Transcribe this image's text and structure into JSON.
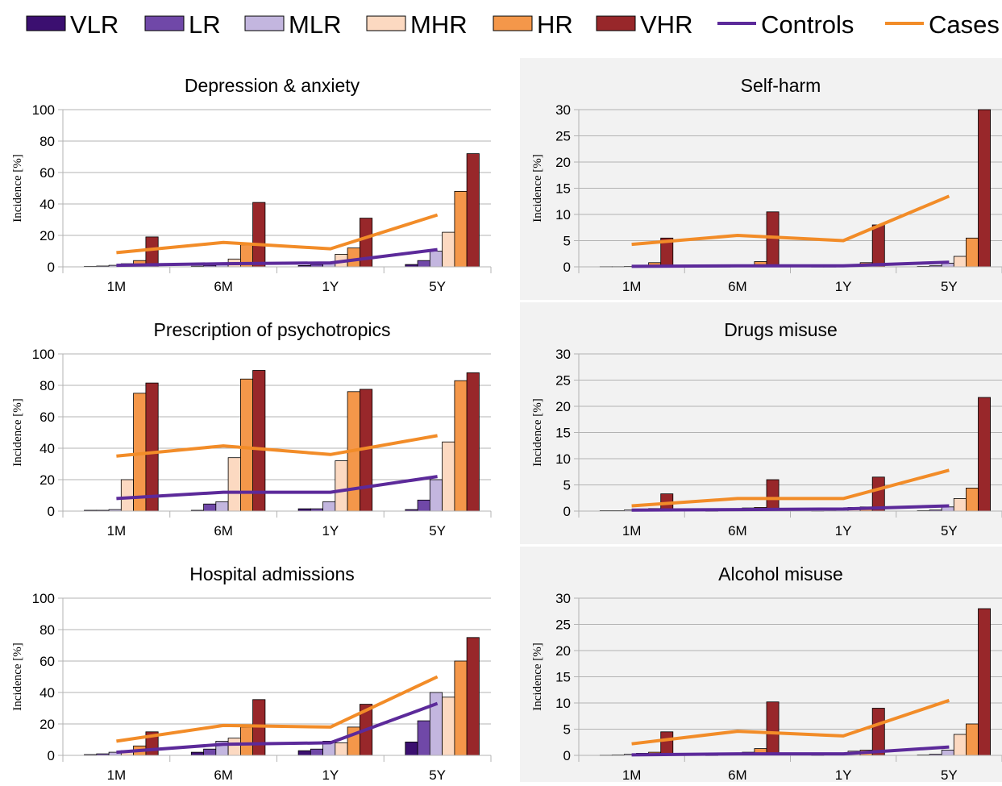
{
  "legend": {
    "bars": [
      {
        "label": "VLR",
        "color": "#3b0f70"
      },
      {
        "label": "LR",
        "color": "#7048a8"
      },
      {
        "label": "MLR",
        "color": "#c3b6df"
      },
      {
        "label": "MHR",
        "color": "#fcd9c1"
      },
      {
        "label": "HR",
        "color": "#f4974a"
      },
      {
        "label": "VHR",
        "color": "#98272a"
      }
    ],
    "lines": [
      {
        "label": "Controls",
        "color": "#5c2a9a"
      },
      {
        "label": "Cases",
        "color": "#f28c28"
      }
    ]
  },
  "chart_data": [
    {
      "type": "bar",
      "title": "Depression & anxiety",
      "ylabel": "Incidence [%]",
      "ylim": [
        0,
        100
      ],
      "yticks": [
        0,
        20,
        40,
        60,
        80,
        100
      ],
      "categories": [
        "1M",
        "6M",
        "1Y",
        "5Y"
      ],
      "series": [
        {
          "name": "VLR",
          "values": [
            0.3,
            0.4,
            0.8,
            1.5
          ]
        },
        {
          "name": "LR",
          "values": [
            0.5,
            0.8,
            1.5,
            4
          ]
        },
        {
          "name": "MLR",
          "values": [
            1,
            2,
            3,
            10
          ]
        },
        {
          "name": "MHR",
          "values": [
            2,
            5,
            8,
            22
          ]
        },
        {
          "name": "HR",
          "values": [
            4,
            14,
            12,
            48
          ]
        },
        {
          "name": "VHR",
          "values": [
            19,
            41,
            31,
            72
          ]
        }
      ],
      "lines": [
        {
          "name": "Controls",
          "values": [
            1,
            2,
            2.5,
            11
          ]
        },
        {
          "name": "Cases",
          "values": [
            9,
            15.5,
            11.5,
            33
          ]
        }
      ]
    },
    {
      "type": "bar",
      "title": "Self-harm",
      "ylabel": "Incidence [%]",
      "ylim": [
        0,
        30
      ],
      "yticks": [
        0,
        5,
        10,
        15,
        20,
        25,
        30
      ],
      "categories": [
        "1M",
        "6M",
        "1Y",
        "5Y"
      ],
      "series": [
        {
          "name": "VLR",
          "values": [
            0.05,
            0.05,
            0.05,
            0.1
          ]
        },
        {
          "name": "LR",
          "values": [
            0.05,
            0.05,
            0.05,
            0.2
          ]
        },
        {
          "name": "MLR",
          "values": [
            0.1,
            0.1,
            0.1,
            0.7
          ]
        },
        {
          "name": "MHR",
          "values": [
            0.2,
            0.3,
            0.4,
            2
          ]
        },
        {
          "name": "HR",
          "values": [
            0.8,
            1,
            0.8,
            5.5
          ]
        },
        {
          "name": "VHR",
          "values": [
            5.5,
            10.5,
            8,
            30
          ]
        }
      ],
      "lines": [
        {
          "name": "Controls",
          "values": [
            0.1,
            0.2,
            0.2,
            0.9
          ]
        },
        {
          "name": "Cases",
          "values": [
            4.3,
            6,
            5,
            13.5
          ]
        }
      ]
    },
    {
      "type": "bar",
      "title": "Prescription of psychotropics",
      "ylabel": "Incidence [%]",
      "ylim": [
        0,
        100
      ],
      "yticks": [
        0,
        20,
        40,
        60,
        80,
        100
      ],
      "categories": [
        "1M",
        "6M",
        "1Y",
        "5Y"
      ],
      "series": [
        {
          "name": "VLR",
          "values": [
            0.5,
            0.5,
            1.5,
            1
          ]
        },
        {
          "name": "LR",
          "values": [
            0.5,
            4.5,
            1.5,
            7
          ]
        },
        {
          "name": "MLR",
          "values": [
            1,
            6,
            6,
            20
          ]
        },
        {
          "name": "MHR",
          "values": [
            20,
            34,
            32,
            44
          ]
        },
        {
          "name": "HR",
          "values": [
            75,
            84,
            76,
            83
          ]
        },
        {
          "name": "VHR",
          "values": [
            81.5,
            89.5,
            77.5,
            88
          ]
        }
      ],
      "lines": [
        {
          "name": "Controls",
          "values": [
            8,
            12,
            12,
            22
          ]
        },
        {
          "name": "Cases",
          "values": [
            35,
            41.5,
            36,
            48
          ]
        }
      ]
    },
    {
      "type": "bar",
      "title": "Drugs misuse",
      "ylabel": "Incidence [%]",
      "ylim": [
        0,
        30
      ],
      "yticks": [
        0,
        5,
        10,
        15,
        20,
        25,
        30
      ],
      "categories": [
        "1M",
        "6M",
        "1Y",
        "5Y"
      ],
      "series": [
        {
          "name": "VLR",
          "values": [
            0.1,
            0.05,
            0.05,
            0.1
          ]
        },
        {
          "name": "LR",
          "values": [
            0.1,
            0.1,
            0.1,
            0.2
          ]
        },
        {
          "name": "MLR",
          "values": [
            0.2,
            0.2,
            0.3,
            0.8
          ]
        },
        {
          "name": "MHR",
          "values": [
            0.4,
            0.6,
            0.7,
            2.4
          ]
        },
        {
          "name": "HR",
          "values": [
            0.5,
            0.7,
            0.8,
            4.4
          ]
        },
        {
          "name": "VHR",
          "values": [
            3.3,
            6,
            6.5,
            21.7
          ]
        }
      ],
      "lines": [
        {
          "name": "Controls",
          "values": [
            0.2,
            0.3,
            0.4,
            1
          ]
        },
        {
          "name": "Cases",
          "values": [
            1,
            2.4,
            2.4,
            7.8
          ]
        }
      ]
    },
    {
      "type": "bar",
      "title": "Hospital admissions",
      "ylabel": "Incidence [%]",
      "ylim": [
        0,
        100
      ],
      "yticks": [
        0,
        20,
        40,
        60,
        80,
        100
      ],
      "categories": [
        "1M",
        "6M",
        "1Y",
        "5Y"
      ],
      "series": [
        {
          "name": "VLR",
          "values": [
            0.5,
            2,
            3,
            8.5
          ]
        },
        {
          "name": "LR",
          "values": [
            1,
            4,
            4,
            22
          ]
        },
        {
          "name": "MLR",
          "values": [
            2,
            9,
            9,
            40
          ]
        },
        {
          "name": "MHR",
          "values": [
            3,
            11,
            8,
            37
          ]
        },
        {
          "name": "HR",
          "values": [
            6,
            18,
            18,
            60
          ]
        },
        {
          "name": "VHR",
          "values": [
            15,
            35.5,
            32.5,
            75
          ]
        }
      ],
      "lines": [
        {
          "name": "Controls",
          "values": [
            2,
            7,
            8,
            33
          ]
        },
        {
          "name": "Cases",
          "values": [
            9,
            19,
            18,
            50
          ]
        }
      ]
    },
    {
      "type": "bar",
      "title": "Alcohol misuse",
      "ylabel": "Incidence [%]",
      "ylim": [
        0,
        30
      ],
      "yticks": [
        0,
        5,
        10,
        15,
        20,
        25,
        30
      ],
      "categories": [
        "1M",
        "6M",
        "1Y",
        "5Y"
      ],
      "series": [
        {
          "name": "VLR",
          "values": [
            0.05,
            0.05,
            0.05,
            0.1
          ]
        },
        {
          "name": "LR",
          "values": [
            0.1,
            0.1,
            0.1,
            0.2
          ]
        },
        {
          "name": "MLR",
          "values": [
            0.2,
            0.3,
            0.3,
            1
          ]
        },
        {
          "name": "MHR",
          "values": [
            0.4,
            0.6,
            0.8,
            4
          ]
        },
        {
          "name": "HR",
          "values": [
            0.6,
            1.3,
            1,
            6
          ]
        },
        {
          "name": "VHR",
          "values": [
            4.5,
            10.2,
            9,
            28
          ]
        }
      ],
      "lines": [
        {
          "name": "Controls",
          "values": [
            0.1,
            0.3,
            0.3,
            1.6
          ]
        },
        {
          "name": "Cases",
          "values": [
            2.2,
            4.6,
            3.7,
            10.5
          ]
        }
      ]
    }
  ]
}
